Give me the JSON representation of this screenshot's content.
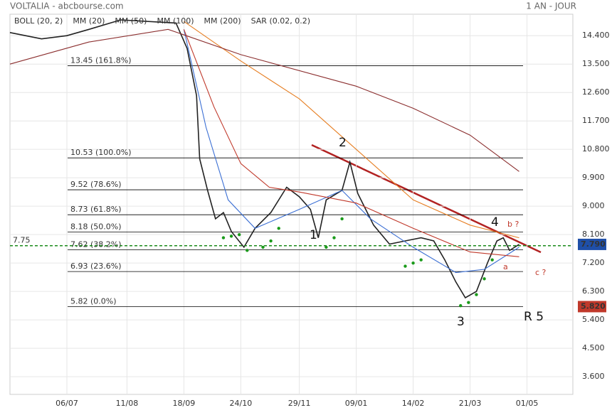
{
  "chart_data": {
    "type": "line",
    "title": "VOLTALIA - abcbourse.com",
    "period": "1 AN - JOUR",
    "legend": [
      {
        "name": "BOLL (20, 2)",
        "color": "#333333"
      },
      {
        "name": "MM (20)",
        "color": "#3b6fd4"
      },
      {
        "name": "MM (50)",
        "color": "#c0392b"
      },
      {
        "name": "MM (100)",
        "color": "#e67e22"
      },
      {
        "name": "MM (200)",
        "color": "#8b2e2e"
      },
      {
        "name": "SAR (0.02, 0.2)",
        "color": "#c0392b"
      }
    ],
    "xlim": [
      0,
      356
    ],
    "xticks": [
      {
        "value": 36,
        "label": "06/07"
      },
      {
        "value": 74,
        "label": "11/08"
      },
      {
        "value": 110,
        "label": "18/09"
      },
      {
        "value": 146,
        "label": "24/10"
      },
      {
        "value": 183,
        "label": "29/11"
      },
      {
        "value": 219,
        "label": "09/01"
      },
      {
        "value": 255,
        "label": "14/02"
      },
      {
        "value": 291,
        "label": "21/03"
      },
      {
        "value": 327,
        "label": "01/05"
      }
    ],
    "ylim": [
      3.04,
      15.08
    ],
    "yticks": [
      {
        "value": 14.4,
        "label": "14.400"
      },
      {
        "value": 13.5,
        "label": "13.500"
      },
      {
        "value": 12.6,
        "label": "12.600"
      },
      {
        "value": 11.7,
        "label": "11.700"
      },
      {
        "value": 10.8,
        "label": "10.800"
      },
      {
        "value": 9.9,
        "label": "9.900"
      },
      {
        "value": 9,
        "label": "9.000"
      },
      {
        "value": 8.1,
        "label": "8.100"
      },
      {
        "value": 7.2,
        "label": "7.200"
      },
      {
        "value": 6.3,
        "label": "6.300"
      },
      {
        "value": 5.4,
        "label": "5.400"
      },
      {
        "value": 4.5,
        "label": "4.500"
      },
      {
        "value": 3.6,
        "label": "3.600"
      }
    ],
    "grid": true,
    "fib_levels": [
      {
        "value": 13.45,
        "label": "13.45  (161.8%)"
      },
      {
        "value": 10.53,
        "label": "10.53  (100.0%)"
      },
      {
        "value": 9.52,
        "label": "9.52  (78.6%)"
      },
      {
        "value": 8.73,
        "label": "8.73  (61.8%)"
      },
      {
        "value": 8.18,
        "label": "8.18  (50.0%)"
      },
      {
        "value": 7.62,
        "label": "7.62  (38.2%)"
      },
      {
        "value": 6.93,
        "label": "6.93  (23.6%)"
      },
      {
        "value": 5.82,
        "label": "5.82  (0.0%)"
      }
    ],
    "ref_line": {
      "value": 7.75,
      "label": "7.75",
      "color": "#1a8a1a"
    },
    "price_tags": [
      {
        "value": 7.79,
        "label": "7.790",
        "color": "#1f4fa8"
      },
      {
        "value": 5.82,
        "label": "5.820",
        "color": "#c0392b"
      }
    ],
    "series": [
      {
        "name": "Cours",
        "color": "#222222",
        "x": [
          0,
          20,
          36,
          50,
          70,
          105,
          112,
          118,
          120,
          125,
          130,
          135,
          140,
          148,
          155,
          165,
          175,
          183,
          190,
          195,
          200,
          210,
          215,
          220,
          225,
          230,
          240,
          250,
          260,
          268,
          275,
          282,
          288,
          295,
          302,
          308,
          312,
          316,
          322
        ],
        "values": [
          14.5,
          14.3,
          14.4,
          14.6,
          14.9,
          14.8,
          14.0,
          12.5,
          10.5,
          9.5,
          8.6,
          8.8,
          8.2,
          7.7,
          8.3,
          8.8,
          9.6,
          9.3,
          8.9,
          8.0,
          9.2,
          9.5,
          10.4,
          9.4,
          8.9,
          8.4,
          7.8,
          7.9,
          8.0,
          7.9,
          7.3,
          6.6,
          6.1,
          6.3,
          7.2,
          7.9,
          8.0,
          7.6,
          7.79
        ]
      },
      {
        "name": "MM (20)",
        "color": "#3b6fd4",
        "x": [
          110,
          124,
          138,
          155,
          183,
          210,
          228,
          255,
          282,
          300,
          322
        ],
        "values": [
          14.6,
          11.5,
          9.2,
          8.3,
          8.9,
          9.5,
          8.6,
          7.7,
          6.9,
          7.0,
          7.7
        ]
      },
      {
        "name": "MM (50)",
        "color": "#c0392b",
        "x": [
          110,
          129,
          146,
          164,
          183,
          219,
          255,
          291,
          322
        ],
        "values": [
          14.6,
          12.15,
          10.35,
          9.6,
          9.45,
          9.1,
          8.3,
          7.55,
          7.4
        ]
      },
      {
        "name": "MM (100)",
        "color": "#e67e22",
        "x": [
          110,
          146,
          183,
          219,
          255,
          291,
          322
        ],
        "values": [
          14.85,
          13.6,
          12.4,
          10.8,
          9.2,
          8.4,
          8.0
        ]
      },
      {
        "name": "MM (200)",
        "color": "#8b2e2e",
        "x": [
          0,
          50,
          100,
          146,
          219,
          255,
          291,
          322
        ],
        "values": [
          13.5,
          14.2,
          14.6,
          13.8,
          12.8,
          12.1,
          11.25,
          10.1
        ]
      },
      {
        "name": "SAR (0.02, 0.2)",
        "color": "#1a9a1a",
        "dots": true,
        "x": [
          135,
          140,
          145,
          150,
          160,
          165,
          170,
          200,
          205,
          210,
          250,
          255,
          260,
          285,
          290,
          295,
          300,
          305
        ],
        "values": [
          8.0,
          8.05,
          8.1,
          7.6,
          7.7,
          7.9,
          8.3,
          7.7,
          8.0,
          8.6,
          7.1,
          7.2,
          7.3,
          5.85,
          5.95,
          6.2,
          6.7,
          7.3
        ]
      }
    ],
    "annotations": [
      "1",
      "2",
      "3",
      "4",
      "R 5",
      "a",
      "b ?",
      "c ?"
    ]
  }
}
